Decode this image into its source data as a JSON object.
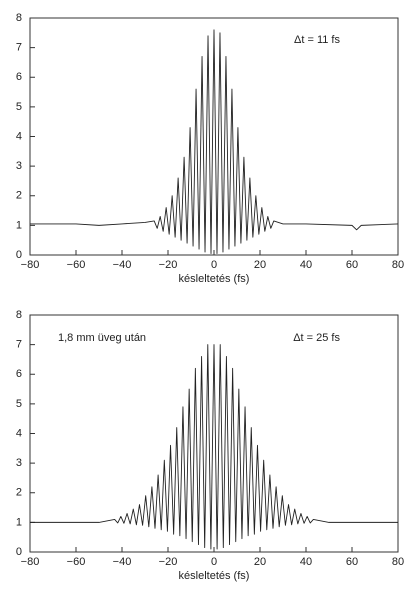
{
  "chart_data": [
    {
      "type": "line",
      "xlabel": "késleltetés (fs)",
      "annotations": [
        "Δt = 11 fs"
      ],
      "xlim": [
        -80,
        80
      ],
      "ylim": [
        0,
        8
      ],
      "xticks": [
        {
          "value": -80,
          "label": "−80"
        },
        {
          "value": -60,
          "label": "−60"
        },
        {
          "value": -40,
          "label": "−40"
        },
        {
          "value": -20,
          "label": "−20"
        },
        0,
        20,
        40,
        60,
        80
      ],
      "yticks": [
        0,
        1,
        2,
        3,
        4,
        5,
        6,
        7,
        8
      ],
      "series": [
        {
          "color": "#222222",
          "x": [
            -80,
            -60,
            -50,
            -40,
            -30,
            -26,
            -24.7,
            -23.4,
            -22.1,
            -20.8,
            -19.5,
            -18.2,
            -16.9,
            -15.6,
            -14.3,
            -13,
            -11.7,
            -10.4,
            -9.1,
            -7.8,
            -6.5,
            -5.2,
            -3.9,
            -2.6,
            -1.3,
            0,
            1.3,
            2.6,
            3.9,
            5.2,
            6.5,
            7.8,
            9.1,
            10.4,
            11.7,
            13,
            14.3,
            15.6,
            16.9,
            18.2,
            19.5,
            20.8,
            22.1,
            23.4,
            24.7,
            26,
            30,
            40,
            60,
            62,
            64,
            80
          ],
          "values": [
            1.05,
            1.05,
            1.0,
            1.05,
            1.1,
            1.15,
            0.9,
            1.3,
            0.8,
            1.6,
            0.7,
            2.0,
            0.6,
            2.6,
            0.5,
            3.3,
            0.4,
            4.3,
            0.3,
            5.6,
            0.2,
            6.7,
            0.1,
            7.4,
            0.05,
            7.6,
            0.05,
            7.5,
            0.1,
            6.7,
            0.2,
            5.6,
            0.3,
            4.3,
            0.4,
            3.3,
            0.5,
            2.6,
            0.6,
            2.0,
            0.7,
            1.6,
            0.8,
            1.3,
            0.9,
            1.15,
            1.05,
            1.05,
            1.0,
            0.85,
            1.0,
            1.05
          ]
        }
      ]
    },
    {
      "type": "line",
      "xlabel": "késleltetés (fs)",
      "annotations": [
        "1,8 mm üveg után",
        "Δt = 25 fs"
      ],
      "xlim": [
        -80,
        80
      ],
      "ylim": [
        0,
        8
      ],
      "xticks": [
        {
          "value": -80,
          "label": "−80"
        },
        {
          "value": -60,
          "label": "−60"
        },
        {
          "value": -40,
          "label": "−40"
        },
        {
          "value": -20,
          "label": "−20"
        },
        0,
        20,
        40,
        60,
        80
      ],
      "yticks": [
        0,
        1,
        2,
        3,
        4,
        5,
        6,
        7,
        8
      ],
      "series": [
        {
          "color": "#222222",
          "x": [
            -80,
            -60,
            -50,
            -43.2,
            -41.85,
            -40.5,
            -39.15,
            -37.8,
            -36.45,
            -35.1,
            -33.75,
            -32.4,
            -31.05,
            -29.7,
            -28.35,
            -27,
            -25.65,
            -24.3,
            -22.95,
            -21.6,
            -20.25,
            -18.9,
            -17.55,
            -16.2,
            -14.85,
            -13.5,
            -12.15,
            -10.8,
            -9.45,
            -8.1,
            -6.75,
            -5.4,
            -4.05,
            -2.7,
            -1.35,
            0,
            1.35,
            2.7,
            4.05,
            5.4,
            6.75,
            8.1,
            9.45,
            10.8,
            12.15,
            13.5,
            14.85,
            16.2,
            17.55,
            18.9,
            20.25,
            21.6,
            22.95,
            24.3,
            25.65,
            27,
            28.35,
            29.7,
            31.05,
            32.4,
            33.75,
            35.1,
            36.45,
            37.8,
            39.15,
            40.5,
            41.85,
            43.2,
            50,
            60,
            80
          ],
          "values": [
            1.0,
            1.0,
            1.0,
            1.1,
            0.98,
            1.2,
            0.97,
            1.3,
            0.95,
            1.45,
            0.92,
            1.6,
            0.9,
            1.9,
            0.85,
            2.2,
            0.8,
            2.6,
            0.75,
            3.1,
            0.7,
            3.6,
            0.6,
            4.2,
            0.55,
            4.9,
            0.45,
            5.5,
            0.35,
            6.2,
            0.25,
            6.6,
            0.15,
            7.0,
            0.1,
            7.0,
            0.1,
            7.0,
            0.15,
            6.6,
            0.25,
            6.2,
            0.35,
            5.5,
            0.45,
            4.9,
            0.55,
            4.2,
            0.6,
            3.6,
            0.7,
            3.1,
            0.75,
            2.6,
            0.8,
            2.2,
            0.85,
            1.9,
            0.9,
            1.6,
            0.92,
            1.45,
            0.95,
            1.3,
            0.97,
            1.2,
            0.98,
            1.1,
            1.0,
            1.0,
            1.0
          ]
        }
      ]
    }
  ]
}
